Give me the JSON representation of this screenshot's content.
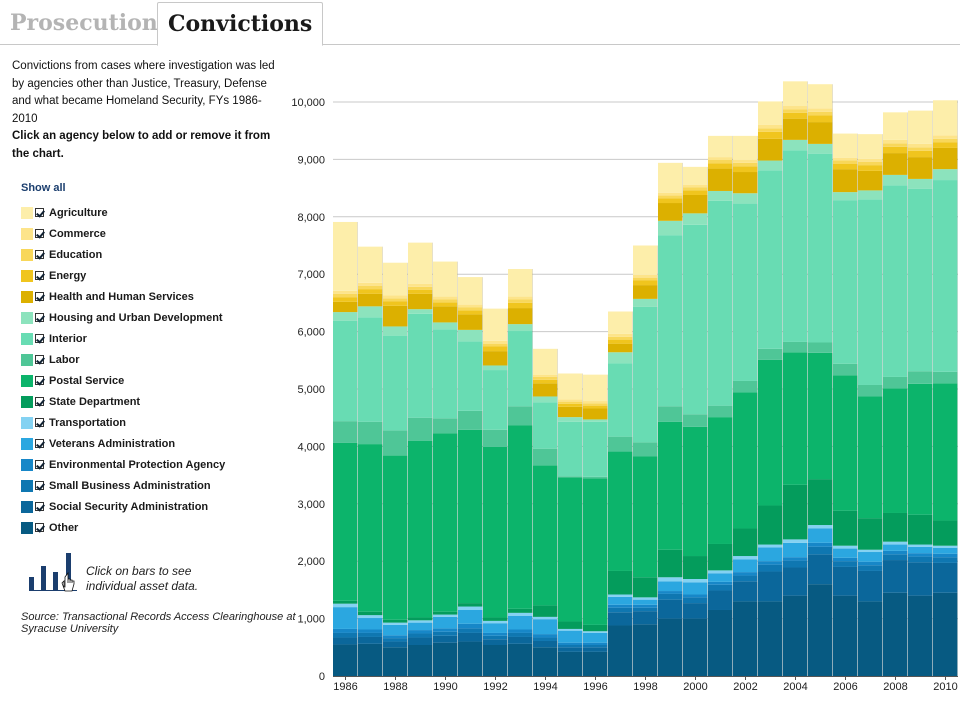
{
  "tabs": [
    {
      "label": "Prosecutions",
      "active": false
    },
    {
      "label": "Convictions",
      "active": true
    }
  ],
  "description": {
    "text": "Convictions from cases where investigation was led by agencies other than Justice, Treasury, Defense and what became Homeland Security, FYs 1986-2010",
    "instruction": "Click an agency below to add or remove it from the chart."
  },
  "legend": {
    "show_all": "Show all",
    "items": [
      {
        "label": "Agriculture",
        "color": "#fdeeaa",
        "checked": true
      },
      {
        "label": "Commerce",
        "color": "#fde48a",
        "checked": true
      },
      {
        "label": "Education",
        "color": "#f8d75a",
        "checked": true
      },
      {
        "label": "Energy",
        "color": "#f0c51e",
        "checked": true
      },
      {
        "label": "Health and Human Services",
        "color": "#dcb000",
        "checked": true
      },
      {
        "label": "Housing and Urban Development",
        "color": "#8ce3bd",
        "checked": true
      },
      {
        "label": "Interior",
        "color": "#68dcb3",
        "checked": true
      },
      {
        "label": "Labor",
        "color": "#4fc697",
        "checked": true
      },
      {
        "label": "Postal Service",
        "color": "#0cb46b",
        "checked": true
      },
      {
        "label": "State Department",
        "color": "#049c5c",
        "checked": true
      },
      {
        "label": "Transportation",
        "color": "#84d2f2",
        "checked": true
      },
      {
        "label": "Veterans Administration",
        "color": "#2ba7e0",
        "checked": true
      },
      {
        "label": "Environmental Protection Agency",
        "color": "#1787c8",
        "checked": true
      },
      {
        "label": "Small Business Administration",
        "color": "#0f77b1",
        "checked": true
      },
      {
        "label": "Social Security Administration",
        "color": "#0b679b",
        "checked": true
      },
      {
        "label": "Other",
        "color": "#075a82",
        "checked": true
      }
    ]
  },
  "hint": "Click on bars to see individual asset data.",
  "icons": {
    "hint": "bar-chart-cursor-icon",
    "checkbox": "checkmark-icon"
  },
  "source": "Source: Transactional Records Access Clearinghouse at Syracuse University",
  "chart_data": {
    "type": "bar",
    "stacked": true,
    "categories": [
      "1986",
      "1987",
      "1988",
      "1989",
      "1990",
      "1991",
      "1992",
      "1993",
      "1994",
      "1995",
      "1996",
      "1997",
      "1998",
      "1999",
      "2000",
      "2001",
      "2002",
      "2003",
      "2004",
      "2005",
      "2006",
      "2007",
      "2008",
      "2009",
      "2010"
    ],
    "x_tick_labels": [
      "1986",
      "1988",
      "1990",
      "1992",
      "1994",
      "1996",
      "1998",
      "2000",
      "2002",
      "2004",
      "2006",
      "2008",
      "2010"
    ],
    "ylim": [
      0,
      10000
    ],
    "y_ticks": [
      0,
      1000,
      2000,
      3000,
      4000,
      5000,
      6000,
      7000,
      8000,
      9000,
      10000
    ],
    "y_tick_labels": [
      "0",
      "1,000",
      "2,000",
      "3,000",
      "4,000",
      "5,000",
      "6,000",
      "7,000",
      "8,000",
      "9,000",
      "10,000"
    ],
    "grid": true,
    "series": [
      {
        "name": "Other",
        "values": [
          550,
          560,
          500,
          540,
          580,
          600,
          540,
          560,
          500,
          420,
          420,
          880,
          900,
          1000,
          1000,
          1150,
          1300,
          1300,
          1400,
          1600,
          1400,
          1300,
          1450,
          1400,
          1450
        ]
      },
      {
        "name": "Social Security Administration",
        "values": [
          120,
          120,
          100,
          130,
          120,
          150,
          100,
          120,
          110,
          80,
          80,
          230,
          230,
          330,
          270,
          340,
          350,
          520,
          490,
          520,
          500,
          530,
          570,
          580,
          520
        ]
      },
      {
        "name": "Small Business Administration",
        "values": [
          80,
          70,
          60,
          70,
          70,
          80,
          60,
          70,
          60,
          40,
          40,
          80,
          60,
          100,
          100,
          100,
          100,
          120,
          120,
          130,
          100,
          100,
          100,
          100,
          100
        ]
      },
      {
        "name": "Environmental Protection Agency",
        "values": [
          70,
          60,
          50,
          60,
          60,
          80,
          50,
          60,
          60,
          40,
          40,
          50,
          50,
          50,
          50,
          50,
          60,
          60,
          60,
          70,
          60,
          60,
          60,
          60,
          60
        ]
      },
      {
        "name": "Veterans Administration",
        "values": [
          380,
          200,
          180,
          130,
          200,
          240,
          170,
          240,
          260,
          210,
          170,
          140,
          90,
          170,
          210,
          150,
          220,
          240,
          250,
          250,
          160,
          170,
          110,
          110,
          100
        ]
      },
      {
        "name": "Transportation",
        "values": [
          60,
          50,
          40,
          40,
          40,
          60,
          40,
          50,
          40,
          30,
          30,
          40,
          40,
          70,
          60,
          50,
          60,
          50,
          60,
          60,
          50,
          40,
          50,
          40,
          40
        ]
      },
      {
        "name": "State Department",
        "values": [
          50,
          60,
          50,
          50,
          50,
          60,
          60,
          70,
          200,
          130,
          110,
          410,
          350,
          480,
          400,
          460,
          480,
          680,
          950,
          800,
          610,
          550,
          500,
          520,
          440
        ]
      },
      {
        "name": "Postal Service",
        "values": [
          2750,
          2920,
          2860,
          3080,
          3110,
          3020,
          2970,
          3200,
          2440,
          2510,
          2550,
          2080,
          2110,
          2230,
          2250,
          2210,
          2370,
          2540,
          2310,
          2200,
          2360,
          2120,
          2170,
          2280,
          2390
        ]
      },
      {
        "name": "Labor",
        "values": [
          380,
          390,
          440,
          400,
          260,
          330,
          300,
          330,
          290,
          20,
          30,
          260,
          240,
          270,
          220,
          200,
          200,
          190,
          180,
          180,
          200,
          200,
          200,
          220,
          200
        ]
      },
      {
        "name": "Interior",
        "values": [
          1750,
          1820,
          1650,
          1810,
          1550,
          1210,
          1040,
          1310,
          810,
          950,
          960,
          1280,
          2360,
          2980,
          3300,
          3570,
          3090,
          3110,
          3340,
          3290,
          2850,
          3230,
          3340,
          3180,
          3340
        ]
      },
      {
        "name": "Housing and Urban Development",
        "values": [
          150,
          190,
          160,
          80,
          120,
          200,
          80,
          120,
          100,
          80,
          40,
          190,
          140,
          250,
          200,
          170,
          180,
          170,
          180,
          170,
          140,
          160,
          180,
          170,
          190
        ]
      },
      {
        "name": "Health and Human Services",
        "values": [
          180,
          220,
          360,
          270,
          280,
          270,
          250,
          280,
          230,
          180,
          190,
          150,
          240,
          310,
          320,
          390,
          370,
          380,
          370,
          380,
          400,
          340,
          380,
          380,
          370
        ]
      },
      {
        "name": "Energy",
        "values": [
          80,
          80,
          80,
          70,
          70,
          70,
          80,
          90,
          60,
          50,
          50,
          70,
          80,
          80,
          80,
          90,
          100,
          120,
          100,
          120,
          90,
          100,
          110,
          110,
          100
        ]
      },
      {
        "name": "Education",
        "values": [
          60,
          60,
          50,
          50,
          50,
          50,
          50,
          60,
          50,
          40,
          40,
          50,
          50,
          50,
          50,
          60,
          60,
          60,
          60,
          60,
          60,
          60,
          60,
          60,
          60
        ]
      },
      {
        "name": "Commerce",
        "values": [
          50,
          50,
          50,
          50,
          50,
          50,
          50,
          50,
          40,
          40,
          40,
          50,
          50,
          50,
          50,
          50,
          50,
          60,
          60,
          60,
          50,
          50,
          60,
          60,
          60
        ]
      },
      {
        "name": "Agriculture",
        "values": [
          1200,
          630,
          570,
          720,
          610,
          480,
          560,
          480,
          450,
          450,
          460,
          390,
          510,
          520,
          310,
          370,
          420,
          410,
          430,
          420,
          420,
          430,
          480,
          580,
          610
        ]
      }
    ]
  }
}
